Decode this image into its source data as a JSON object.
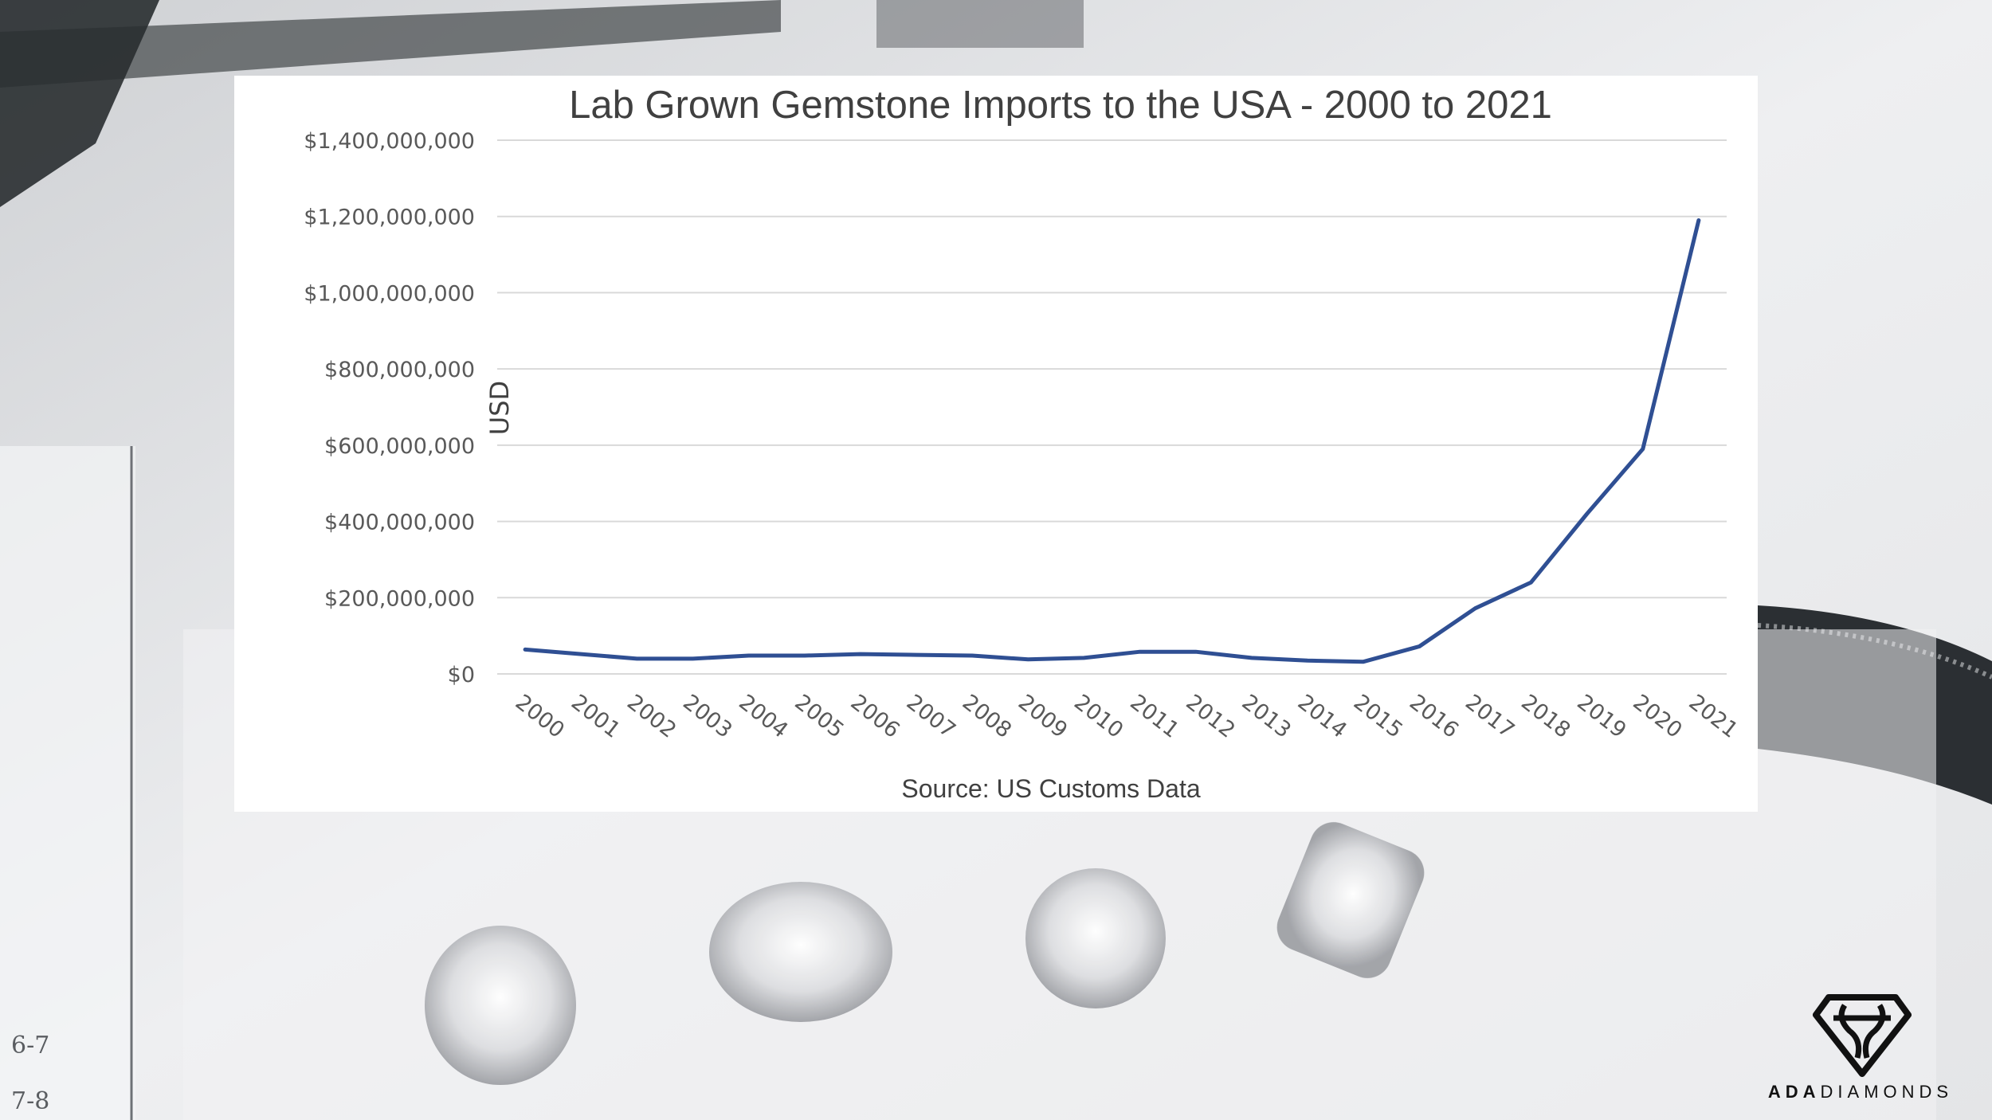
{
  "colors": {
    "line": "#2f4f93",
    "grid": "#d9d9d9",
    "panel": "#ffffff",
    "text": "#595959",
    "brand": "#111111"
  },
  "brand": {
    "icon": "ada-monogram-logo",
    "name_bold": "ADA",
    "name_light": "DIAMONDS"
  },
  "background": {
    "ruler_marks": [
      "6-7",
      "7-8"
    ]
  },
  "chart_data": {
    "type": "line",
    "title": "Lab Grown Gemstone Imports to the USA - 2000 to 2021",
    "ylabel": "USD",
    "source": "Source: US Customs Data",
    "ylim": [
      0,
      1400000000
    ],
    "yticks": [
      0,
      200000000,
      400000000,
      600000000,
      800000000,
      1000000000,
      1200000000,
      1400000000
    ],
    "ytick_labels": [
      "$0",
      "$200,000,000",
      "$400,000,000",
      "$600,000,000",
      "$800,000,000",
      "$1,000,000,000",
      "$1,200,000,000",
      "$1,400,000,000"
    ],
    "categories": [
      "2000",
      "2001",
      "2002",
      "2003",
      "2004",
      "2005",
      "2006",
      "2007",
      "2008",
      "2009",
      "2010",
      "2011",
      "2012",
      "2013",
      "2014",
      "2015",
      "2016",
      "2017",
      "2018",
      "2019",
      "2020",
      "2021"
    ],
    "grid": true,
    "legend": "none",
    "series": [
      {
        "values": [
          64000000,
          52000000,
          40000000,
          40000000,
          48000000,
          48000000,
          52000000,
          50000000,
          48000000,
          38000000,
          42000000,
          58000000,
          58000000,
          42000000,
          35000000,
          32000000,
          72000000,
          172000000,
          240000000,
          420000000,
          590000000,
          1190000000
        ]
      }
    ]
  }
}
